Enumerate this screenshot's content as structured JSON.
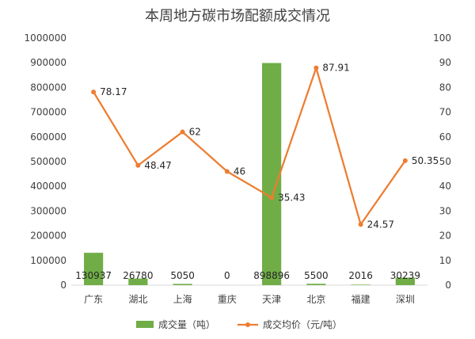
{
  "chart_data": {
    "type": "bar",
    "title": "本周地方碳市场配额成交情况",
    "categories": [
      "广东",
      "湖北",
      "上海",
      "重庆",
      "天津",
      "北京",
      "福建",
      "深圳"
    ],
    "series": [
      {
        "name": "成交量（吨）",
        "type": "bar",
        "axis": "left",
        "color": "#70AD47",
        "values": [
          130937,
          26780,
          5050,
          0,
          898896,
          5500,
          2016,
          30239
        ],
        "labels": [
          "130937",
          "26780",
          "5050",
          "0",
          "898896",
          "5500",
          "2016",
          "30239"
        ]
      },
      {
        "name": "成交均价（元/吨）",
        "type": "line",
        "axis": "right",
        "color": "#ED7D31",
        "values": [
          78.17,
          48.47,
          62,
          46,
          35.43,
          87.91,
          24.57,
          50.35
        ],
        "labels": [
          "78.17",
          "48.47",
          "62",
          "46",
          "35.43",
          "87.91",
          "24.57",
          "50.35"
        ]
      }
    ],
    "y_left": {
      "range": [
        0,
        1000000
      ],
      "ticks": [
        "0",
        "100000",
        "200000",
        "300000",
        "400000",
        "500000",
        "600000",
        "700000",
        "800000",
        "900000",
        "1000000"
      ]
    },
    "y_right": {
      "range": [
        0,
        100
      ],
      "ticks": [
        "0",
        "10",
        "20",
        "30",
        "40",
        "50",
        "60",
        "70",
        "80",
        "90",
        "100"
      ]
    },
    "grid": false,
    "legend_position": "bottom"
  }
}
